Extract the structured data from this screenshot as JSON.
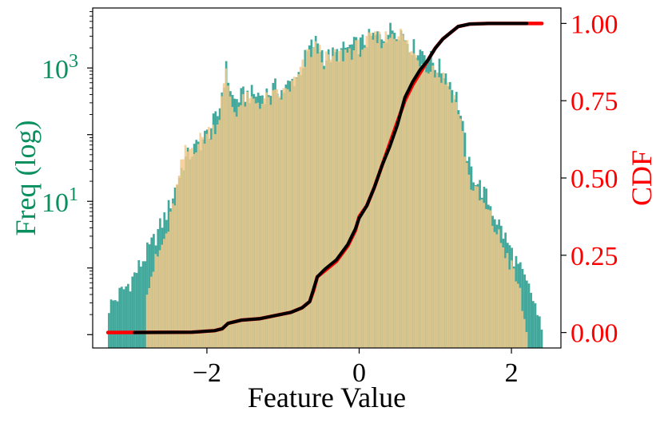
{
  "colors": {
    "hist_a": "#21998a",
    "hist_b": "#f5c98a",
    "cdf_a": "#ff0000",
    "cdf_b": "#000000",
    "freq_axis": "#0a8f5f",
    "cdf_axis": "#ff0000",
    "frame": "#000000"
  },
  "chart_data": {
    "type": "histogram+line",
    "title": "",
    "xlabel": "Feature Value",
    "ylabel_left": "Freq (log)",
    "ylabel_right": "CDF",
    "xlim": [
      -3.5,
      2.65
    ],
    "ylim_left_log10": [
      -1.2,
      3.9
    ],
    "ylim_right": [
      -0.05,
      1.05
    ],
    "yscale_left": "log",
    "xticks": [
      {
        "v": -2,
        "label": "−2"
      },
      {
        "v": 0,
        "label": "0"
      },
      {
        "v": 2,
        "label": "2"
      }
    ],
    "yticks_left": [
      {
        "v": 1,
        "base": "10",
        "exp": "1"
      },
      {
        "v": 3,
        "base": "10",
        "exp": "3"
      }
    ],
    "yticks_right": [
      {
        "v": 0.0,
        "label": "0.00"
      },
      {
        "v": 0.25,
        "label": "0.25"
      },
      {
        "v": 0.5,
        "label": "0.50"
      },
      {
        "v": 0.75,
        "label": "0.75"
      },
      {
        "v": 1.0,
        "label": "1.00"
      }
    ],
    "hist_bin_width": 0.028,
    "hist_a_profile": [
      [
        -3.3,
        -0.6
      ],
      [
        -3.0,
        -0.2
      ],
      [
        -2.7,
        0.4
      ],
      [
        -2.5,
        0.9
      ],
      [
        -2.3,
        1.6
      ],
      [
        -2.0,
        2.0
      ],
      [
        -1.85,
        2.3
      ],
      [
        -1.75,
        3.0
      ],
      [
        -1.65,
        2.5
      ],
      [
        -1.5,
        2.6
      ],
      [
        -1.25,
        2.6
      ],
      [
        -1.1,
        2.7
      ],
      [
        -1.0,
        2.65
      ],
      [
        -0.8,
        2.9
      ],
      [
        -0.65,
        3.3
      ],
      [
        -0.55,
        3.4
      ],
      [
        -0.45,
        3.15
      ],
      [
        -0.3,
        3.2
      ],
      [
        -0.15,
        3.3
      ],
      [
        0.0,
        3.35
      ],
      [
        0.15,
        3.45
      ],
      [
        0.35,
        3.5
      ],
      [
        0.45,
        3.6
      ],
      [
        0.55,
        3.55
      ],
      [
        0.7,
        3.3
      ],
      [
        0.85,
        3.25
      ],
      [
        1.0,
        3.05
      ],
      [
        1.15,
        2.9
      ],
      [
        1.3,
        2.5
      ],
      [
        1.45,
        1.5
      ],
      [
        1.7,
        1.0
      ],
      [
        1.9,
        0.5
      ],
      [
        2.1,
        0.0
      ],
      [
        2.3,
        -0.5
      ],
      [
        2.4,
        -1.0
      ]
    ],
    "hist_b_profile": [
      [
        -2.8,
        -0.3
      ],
      [
        -2.5,
        0.6
      ],
      [
        -2.3,
        1.7
      ],
      [
        -2.0,
        2.0
      ],
      [
        -1.85,
        2.2
      ],
      [
        -1.75,
        2.9
      ],
      [
        -1.65,
        2.35
      ],
      [
        -1.5,
        2.5
      ],
      [
        -1.25,
        2.5
      ],
      [
        -1.0,
        2.6
      ],
      [
        -0.8,
        2.85
      ],
      [
        -0.65,
        3.25
      ],
      [
        -0.55,
        3.3
      ],
      [
        -0.45,
        3.1
      ],
      [
        -0.3,
        3.15
      ],
      [
        -0.15,
        3.25
      ],
      [
        0.0,
        3.3
      ],
      [
        0.15,
        3.4
      ],
      [
        0.35,
        3.45
      ],
      [
        0.45,
        3.55
      ],
      [
        0.55,
        3.5
      ],
      [
        0.7,
        3.2
      ],
      [
        0.85,
        3.1
      ],
      [
        1.0,
        2.95
      ],
      [
        1.15,
        2.8
      ],
      [
        1.3,
        2.4
      ],
      [
        1.45,
        1.3
      ],
      [
        1.7,
        0.8
      ],
      [
        1.9,
        0.3
      ],
      [
        2.1,
        -0.3
      ],
      [
        2.2,
        -1.0
      ]
    ],
    "series": [
      {
        "kind": "cdf",
        "color_key": "cdf_a",
        "points": [
          [
            -3.3,
            0.0
          ],
          [
            -2.2,
            0.001
          ],
          [
            -1.9,
            0.006
          ],
          [
            -1.8,
            0.012
          ],
          [
            -1.72,
            0.03
          ],
          [
            -1.55,
            0.04
          ],
          [
            -1.3,
            0.045
          ],
          [
            -1.1,
            0.055
          ],
          [
            -0.9,
            0.065
          ],
          [
            -0.75,
            0.08
          ],
          [
            -0.65,
            0.1
          ],
          [
            -0.6,
            0.135
          ],
          [
            -0.55,
            0.18
          ],
          [
            -0.45,
            0.2
          ],
          [
            -0.3,
            0.23
          ],
          [
            -0.15,
            0.28
          ],
          [
            -0.05,
            0.33
          ],
          [
            0.0,
            0.375
          ],
          [
            0.1,
            0.41
          ],
          [
            0.2,
            0.47
          ],
          [
            0.3,
            0.54
          ],
          [
            0.4,
            0.61
          ],
          [
            0.5,
            0.68
          ],
          [
            0.6,
            0.75
          ],
          [
            0.7,
            0.8
          ],
          [
            0.8,
            0.84
          ],
          [
            0.9,
            0.88
          ],
          [
            1.0,
            0.92
          ],
          [
            1.1,
            0.95
          ],
          [
            1.2,
            0.97
          ],
          [
            1.3,
            0.99
          ],
          [
            1.45,
            0.998
          ],
          [
            1.7,
            1.0
          ],
          [
            2.4,
            1.0
          ]
        ]
      },
      {
        "kind": "cdf",
        "color_key": "cdf_b",
        "points": [
          [
            -2.95,
            0.0
          ],
          [
            -2.2,
            0.001
          ],
          [
            -1.9,
            0.006
          ],
          [
            -1.8,
            0.012
          ],
          [
            -1.72,
            0.03
          ],
          [
            -1.55,
            0.04
          ],
          [
            -1.3,
            0.045
          ],
          [
            -1.1,
            0.055
          ],
          [
            -0.9,
            0.065
          ],
          [
            -0.75,
            0.08
          ],
          [
            -0.65,
            0.1
          ],
          [
            -0.6,
            0.14
          ],
          [
            -0.55,
            0.18
          ],
          [
            -0.45,
            0.205
          ],
          [
            -0.3,
            0.235
          ],
          [
            -0.15,
            0.285
          ],
          [
            -0.05,
            0.335
          ],
          [
            0.0,
            0.37
          ],
          [
            0.1,
            0.41
          ],
          [
            0.2,
            0.47
          ],
          [
            0.3,
            0.54
          ],
          [
            0.4,
            0.6
          ],
          [
            0.5,
            0.67
          ],
          [
            0.6,
            0.76
          ],
          [
            0.7,
            0.81
          ],
          [
            0.8,
            0.85
          ],
          [
            0.9,
            0.88
          ],
          [
            1.0,
            0.92
          ],
          [
            1.1,
            0.95
          ],
          [
            1.2,
            0.97
          ],
          [
            1.3,
            0.99
          ],
          [
            1.45,
            0.998
          ],
          [
            1.7,
            1.0
          ],
          [
            2.2,
            1.0
          ]
        ]
      }
    ]
  }
}
